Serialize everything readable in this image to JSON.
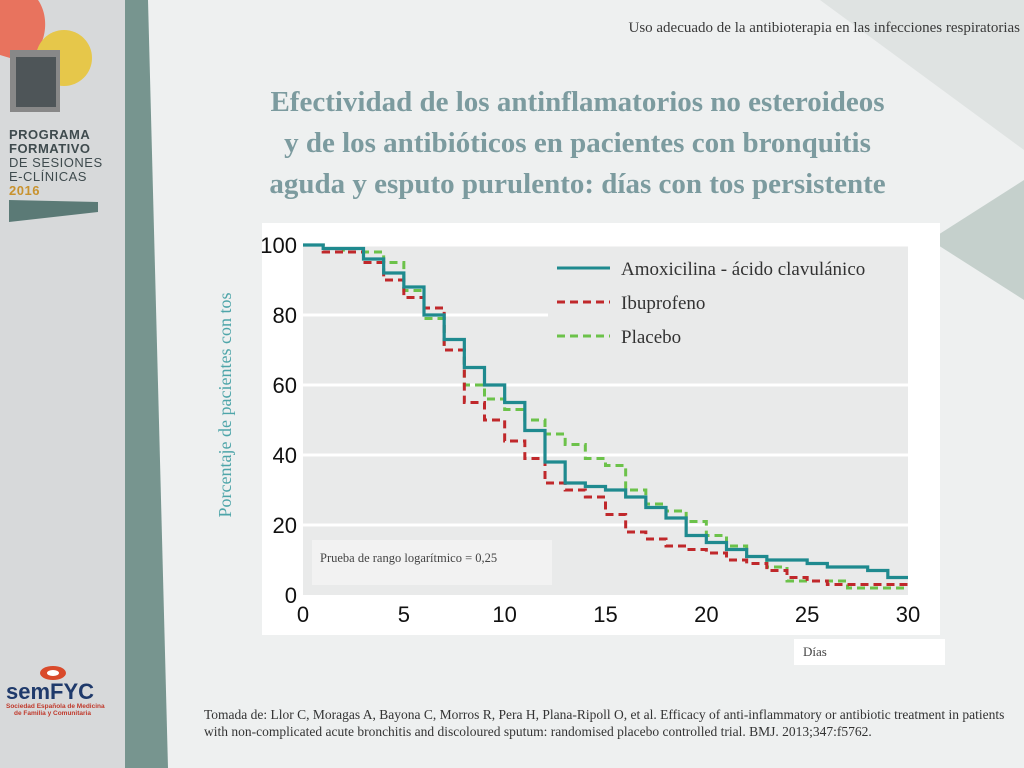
{
  "header": {
    "subtitle": "Uso adecuado de la antibioterapia en las infecciones respiratorias"
  },
  "title": {
    "line1": "Efectividad de los antinflamatorios no esteroideos",
    "line2": "y de los antibióticos en pacientes con bronquitis",
    "line3": "aguda y esputo purulento: días con tos persistente"
  },
  "sidebar": {
    "program": [
      "PROGRAMA",
      "FORMATIVO",
      "DE SESIONES",
      "E-CLÍNICAS",
      "2016"
    ],
    "logo": {
      "name": "semFYC",
      "subtitle": [
        "Sociedad Española de Medicina",
        "de Familia y Comunitaria"
      ]
    }
  },
  "colors": {
    "amoxicilina": "#1f8a8f",
    "ibuprofeno": "#c0282b",
    "placebo": "#6cc24a",
    "title": "#7c9b9f"
  },
  "chart_data": {
    "type": "line",
    "step": true,
    "ylabel": "Porcentaje de pacientes con tos",
    "xlabel": "Días",
    "xlim": [
      0,
      30
    ],
    "ylim": [
      0,
      100
    ],
    "x_ticks": [
      "0",
      "5",
      "10",
      "15",
      "20",
      "25",
      "30"
    ],
    "y_ticks": [
      "0",
      "20",
      "40",
      "60",
      "80",
      "100"
    ],
    "grid": true,
    "legend_position": "top-right",
    "annotation": "Prueba de rango logarítmico = 0,25",
    "series": [
      {
        "name": "Amoxicilina - ácido clavulánico",
        "color_key": "amoxicilina",
        "dash": "solid",
        "x": [
          0,
          1,
          3,
          4,
          5,
          6,
          7,
          8,
          9,
          10,
          11,
          12,
          13,
          14,
          15,
          16,
          17,
          18,
          19,
          20,
          21,
          22,
          23,
          24,
          25,
          26,
          27,
          28,
          29,
          30
        ],
        "y": [
          100,
          99,
          96,
          92,
          88,
          80,
          73,
          65,
          60,
          55,
          47,
          38,
          32,
          31,
          30,
          28,
          25,
          22,
          17,
          15,
          13,
          11,
          10,
          10,
          9,
          8,
          8,
          7,
          5,
          5
        ]
      },
      {
        "name": "Ibuprofeno",
        "color_key": "ibuprofeno",
        "dash": "dashed",
        "x": [
          0,
          1,
          3,
          4,
          5,
          6,
          7,
          8,
          9,
          10,
          11,
          12,
          13,
          14,
          15,
          16,
          17,
          18,
          19,
          20,
          21,
          22,
          23,
          24,
          25,
          26,
          27,
          28,
          29,
          30
        ],
        "y": [
          100,
          98,
          95,
          90,
          85,
          82,
          70,
          55,
          50,
          44,
          39,
          32,
          30,
          28,
          23,
          18,
          16,
          14,
          13,
          12,
          10,
          9,
          7,
          5,
          4,
          3,
          3,
          3,
          3,
          3
        ]
      },
      {
        "name": "Placebo",
        "color_key": "placebo",
        "dash": "dashed",
        "x": [
          0,
          1,
          2,
          4,
          5,
          6,
          7,
          8,
          9,
          10,
          11,
          12,
          13,
          14,
          15,
          16,
          17,
          18,
          19,
          20,
          21,
          22,
          23,
          24,
          25,
          26,
          27,
          28,
          29,
          30
        ],
        "y": [
          100,
          99,
          98,
          95,
          87,
          79,
          70,
          60,
          56,
          53,
          50,
          46,
          43,
          39,
          37,
          30,
          26,
          24,
          21,
          17,
          14,
          11,
          8,
          4,
          4,
          4,
          2,
          2,
          2,
          2
        ]
      }
    ]
  },
  "citation": "Tomada de: Llor C, Moragas A, Bayona C, Morros R, Pera H, Plana-Ripoll O, et al. Efficacy of anti-inflammatory or antibiotic treatment in patients with non-complicated acute bronchitis and discoloured sputum: randomised placebo controlled trial. BMJ. 2013;347:f5762."
}
